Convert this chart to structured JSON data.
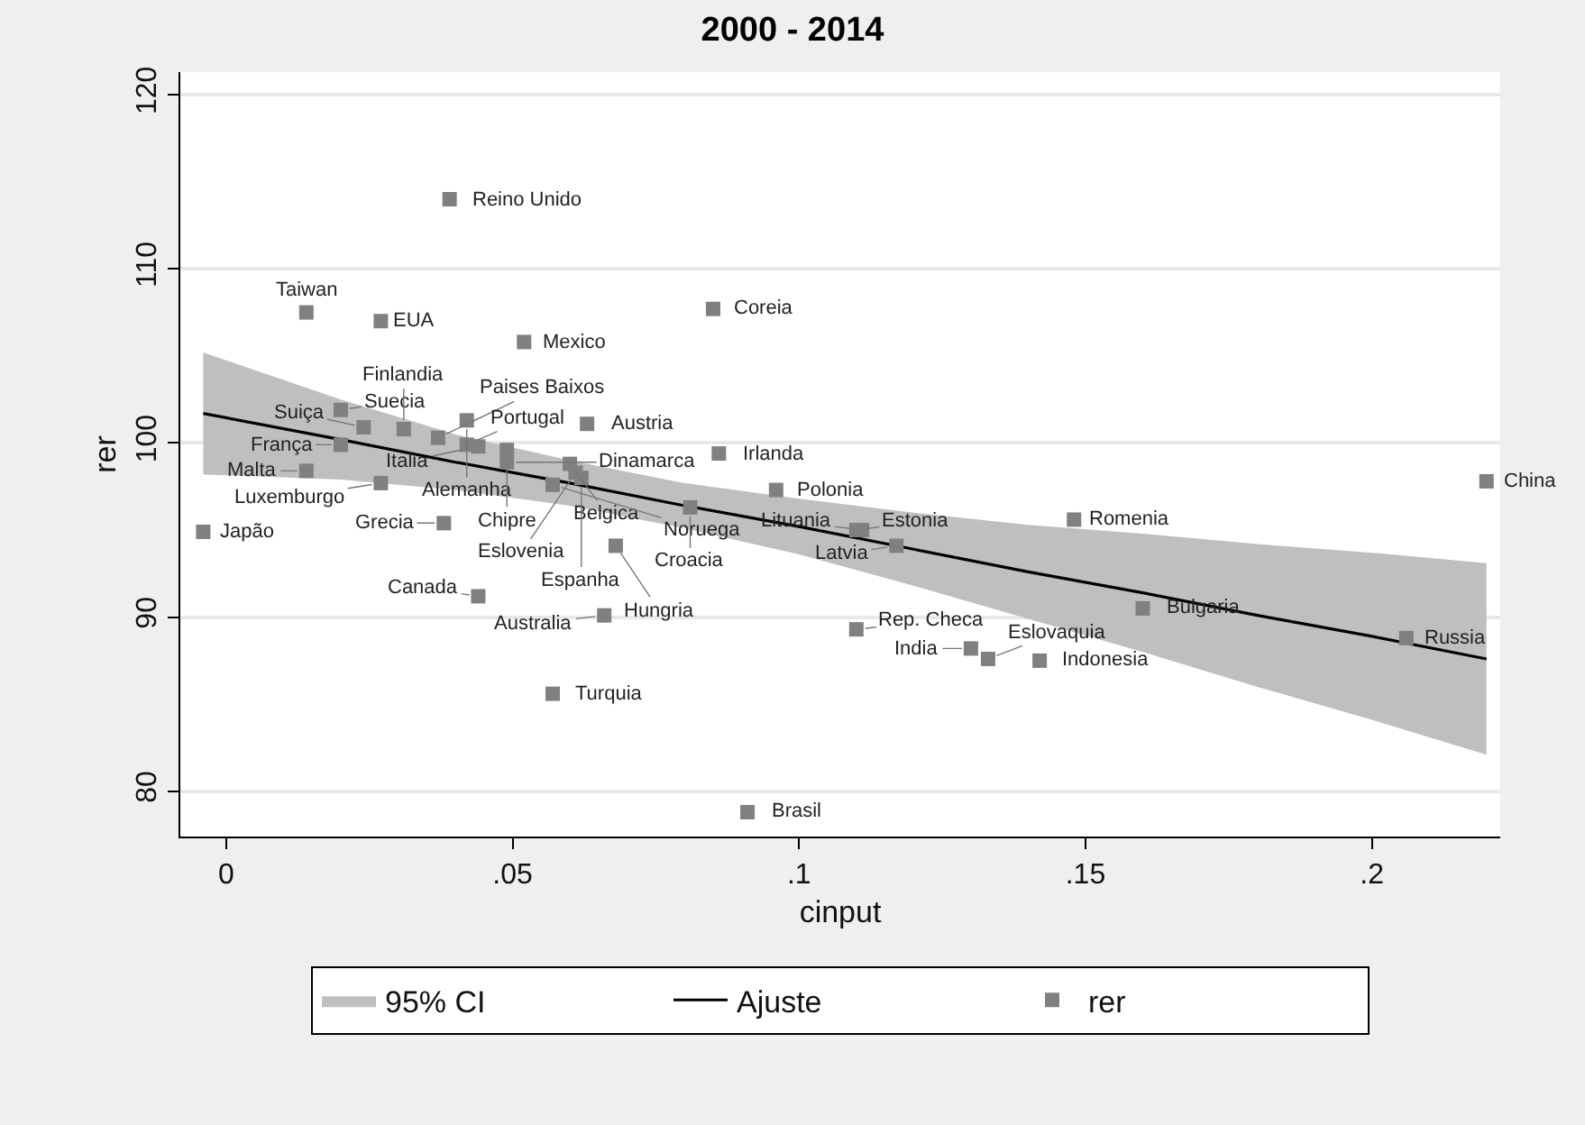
{
  "chart_data": {
    "type": "scatter",
    "title": "2000 - 2014",
    "xlabel": "cinput",
    "ylabel": "rer",
    "xlim": [
      -0.008,
      0.2224
    ],
    "xticks": [
      {
        "value": 0,
        "label": "0"
      },
      {
        "value": 0.05,
        "label": ".05"
      },
      {
        "value": 0.1,
        "label": ".1"
      },
      {
        "value": 0.15,
        "label": ".15"
      },
      {
        "value": 0.2,
        "label": ".2"
      }
    ],
    "ylim": [
      77.4,
      121.3
    ],
    "yticks": [
      80,
      90,
      100,
      110,
      120
    ],
    "grid": "y",
    "legend": "bottom",
    "marker": "square",
    "series": [
      {
        "name": "95% CI",
        "type": "area",
        "color": "#bfbfbf"
      },
      {
        "name": "Ajuste",
        "type": "line",
        "marker": "none",
        "color": "#000000",
        "line_style": "solid",
        "x": [
          -0.004,
          0.02,
          0.04,
          0.06,
          0.08,
          0.1,
          0.12,
          0.14,
          0.16,
          0.18,
          0.2,
          0.22
        ],
        "values": [
          101.7,
          100.2,
          98.9,
          97.7,
          96.4,
          95.2,
          93.9,
          92.6,
          91.4,
          90.1,
          88.9,
          87.6
        ],
        "lower": [
          98.2,
          97.9,
          97.3,
          96.4,
          95.1,
          93.6,
          91.8,
          89.9,
          88.0,
          86.0,
          84.1,
          82.1
        ],
        "upper": [
          105.2,
          102.5,
          100.5,
          99.0,
          97.7,
          96.8,
          96.0,
          95.3,
          94.8,
          94.2,
          93.7,
          93.1
        ]
      },
      {
        "name": "rer",
        "type": "scatter",
        "color": "#808080",
        "x": [
          0.039,
          0.014,
          0.027,
          0.052,
          0.085,
          0.02,
          0.024,
          0.031,
          0.037,
          0.042,
          0.042,
          0.044,
          0.049,
          0.049,
          0.063,
          0.06,
          0.061,
          0.062,
          0.057,
          0.086,
          0.02,
          0.014,
          0.027,
          0.081,
          0.096,
          -0.004,
          0.038,
          0.068,
          0.044,
          0.066,
          0.057,
          0.091,
          0.11,
          0.13,
          0.133,
          0.142,
          0.11,
          0.111,
          0.117,
          0.148,
          0.16,
          0.206,
          0.22
        ],
        "values": [
          114.0,
          107.5,
          107.0,
          105.8,
          107.7,
          101.9,
          100.9,
          100.8,
          100.3,
          101.3,
          99.9,
          99.8,
          99.6,
          98.9,
          101.1,
          98.8,
          98.3,
          98.0,
          97.6,
          99.4,
          99.9,
          98.4,
          97.7,
          96.3,
          97.3,
          94.9,
          95.4,
          94.1,
          91.2,
          90.1,
          85.6,
          78.8,
          89.3,
          88.2,
          87.6,
          87.5,
          95.0,
          95.0,
          94.1,
          95.6,
          90.5,
          88.8,
          97.8
        ],
        "value_labels": [
          "Reino Unido",
          "Taiwan",
          "EUA",
          "Mexico",
          "Coreia",
          "Suecia",
          "Suiça",
          "Finlandia",
          "Paises Baixos",
          "Alemanha",
          "Portugal",
          "Italia",
          "Chipre",
          "Dinamarca",
          "Austria",
          "Belgica",
          "Eslovenia",
          "Espanha",
          "Noruega",
          "Irlanda",
          "França",
          "Malta",
          "Luxemburgo",
          "Croacia",
          "Polonia",
          "Japão",
          "Grecia",
          "Hungria",
          "Canada",
          "Australia",
          "Turquia",
          "Brasil",
          "Rep. Checa",
          "India",
          "Eslovaquia",
          "Indonesia",
          "Estonia",
          "Lituania",
          "Latvia",
          "Romenia",
          "Bulgaria",
          "Russia",
          "China"
        ]
      }
    ]
  }
}
